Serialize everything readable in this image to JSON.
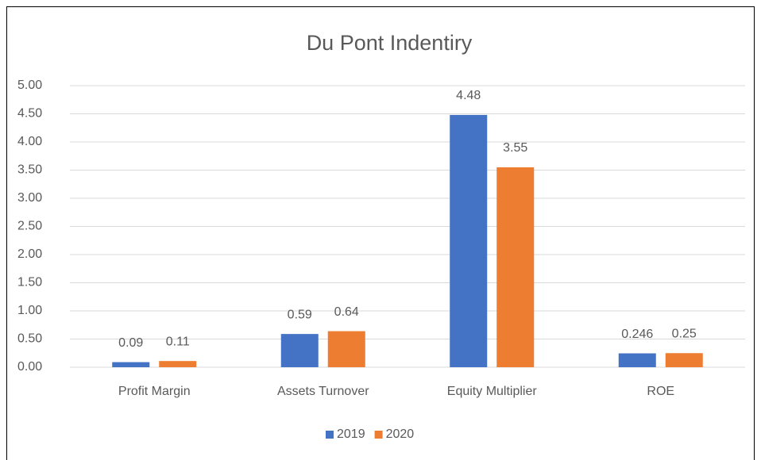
{
  "chart_data": {
    "type": "bar",
    "title": "Du Pont Indentiry",
    "categories": [
      "Profit Margin",
      "Assets Turnover",
      "Equity Multiplier",
      "ROE"
    ],
    "series": [
      {
        "name": "2019",
        "color": "#4472c4",
        "values": [
          0.09,
          0.59,
          4.48,
          0.246
        ]
      },
      {
        "name": "2020",
        "color": "#ed7d31",
        "values": [
          0.11,
          0.64,
          3.55,
          0.25
        ]
      }
    ],
    "ylim": [
      0,
      5
    ],
    "yticks": [
      {
        "value": 0,
        "label": "0.00"
      },
      {
        "value": 0.5,
        "label": "0.50"
      },
      {
        "value": 1,
        "label": "1.00"
      },
      {
        "value": 1.5,
        "label": "1.50"
      },
      {
        "value": 2,
        "label": "2.00"
      },
      {
        "value": 2.5,
        "label": "2.50"
      },
      {
        "value": 3,
        "label": "3.00"
      },
      {
        "value": 3.5,
        "label": "3.50"
      },
      {
        "value": 4,
        "label": "4.00"
      },
      {
        "value": 4.5,
        "label": "4.50"
      },
      {
        "value": 5,
        "label": "5.00"
      }
    ],
    "grid": true,
    "legend": "bottom"
  }
}
